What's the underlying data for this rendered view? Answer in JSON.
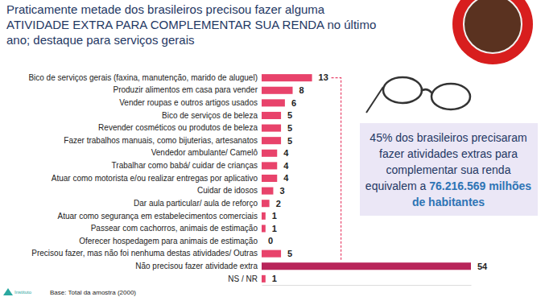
{
  "chart_data": {
    "type": "bar",
    "orientation": "horizontal",
    "title": "Praticamente metade dos brasileiros precisou fazer alguma ATIVIDADE EXTRA PARA COMPLEMENTAR SUA RENDA no último ano; destaque para serviços gerais",
    "categories": [
      "Bico de serviços gerais (faxina, manutenção, marido de aluguel)",
      "Produzir alimentos em casa para vender",
      "Vender roupas e outros artigos usados",
      "Bico de serviços de beleza",
      "Revender cosméticos ou produtos de beleza",
      "Fazer trabalhos manuais, como bijuterias, artesanatos",
      "Vendedor ambulante/ Camelô",
      "Trabalhar como babá/ cuidar de crianças",
      "Atuar como motorista e/ou realizar entregas por aplicativo",
      "Cuidar de idosos",
      "Dar aula particular/ aula de reforço",
      "Atuar como segurança em estabelecimentos comerciais",
      "Passear com cachorros, animais de estimação",
      "Oferecer hospedagem para animais de estimação",
      "Precisou fazer, mas não foi nenhuma destas atividades/ Outras",
      "Não precisou fazer atividade extra",
      "NS / NR"
    ],
    "values": [
      13,
      8,
      6,
      5,
      5,
      5,
      4,
      4,
      4,
      3,
      2,
      1,
      1,
      0,
      5,
      54,
      1
    ],
    "colors": [
      "#e8436b",
      "#e8436b",
      "#e8436b",
      "#e8436b",
      "#e8436b",
      "#e8436b",
      "#e8436b",
      "#e8436b",
      "#e8436b",
      "#e8436b",
      "#e8436b",
      "#e8436b",
      "#e8436b",
      "#e8436b",
      "#e8436b",
      "#b8255a",
      "#e8436b"
    ],
    "xlim": [
      0,
      54
    ],
    "xticks": [],
    "data_labels": true,
    "tick_labels": false,
    "grid": false,
    "annotations": [
      "45% dos brasileiros precisaram fazer atividades extras para complementar sua renda equivalem a",
      "76.216.569 milhões de habitantes",
      "Base: Total da amostra (2000)",
      "Instituto"
    ]
  }
}
